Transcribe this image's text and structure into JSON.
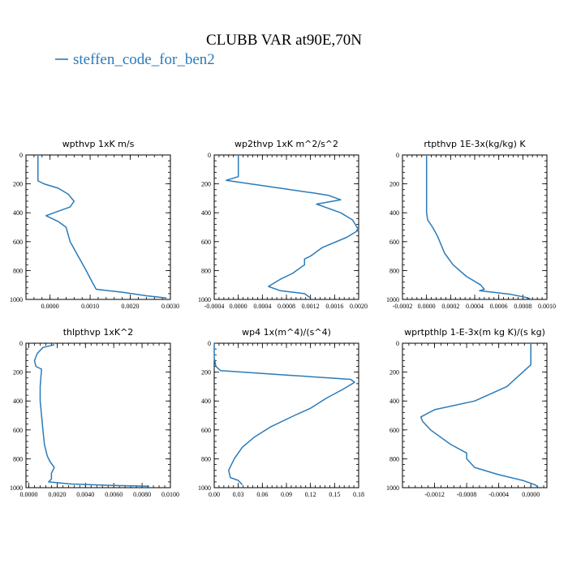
{
  "title": "CLUBB VAR at90E,70N",
  "legend": {
    "label": "steffen_code_for_ben2",
    "color": "#2b7bb9"
  },
  "line_color": "#2b7bb9",
  "chart_data": [
    {
      "type": "line",
      "title": "wpthvp   1xK m/s",
      "xlim": [
        -0.0006,
        0.003
      ],
      "ylim": [
        1000,
        0
      ],
      "xticks": [
        0.0,
        0.001,
        0.002,
        0.003
      ],
      "xtick_labels": [
        "0.0000",
        "0.0010",
        "0.0020",
        "0.0030"
      ],
      "yticks": [
        0,
        200,
        400,
        600,
        800,
        1000
      ],
      "ytick_labels": [
        "0",
        "200",
        "400",
        "600",
        "800",
        "1000"
      ],
      "series": [
        {
          "x": [
            -0.0003,
            -0.0003,
            -0.0003,
            -0.0003,
            -0.0003,
            -0.00015,
            0.0002,
            0.00045,
            0.0006,
            0.0005,
            0.0001,
            -0.0001,
            0.0002,
            0.0004,
            0.0005,
            0.0007,
            0.0009,
            0.00105,
            0.00115,
            0.0018,
            0.0024,
            0.0029
          ],
          "y": [
            0,
            50,
            100,
            150,
            180,
            200,
            230,
            270,
            320,
            360,
            400,
            420,
            460,
            500,
            600,
            700,
            800,
            880,
            930,
            950,
            975,
            990
          ]
        }
      ]
    },
    {
      "type": "line",
      "title": "wp2thvp   1xK m^2/s^2",
      "xlim": [
        -0.0004,
        0.002
      ],
      "ylim": [
        1000,
        0
      ],
      "xticks": [
        -0.0004,
        0.0,
        0.0004,
        0.0008,
        0.0012,
        0.0016,
        0.002
      ],
      "xtick_labels": [
        "-0.0004",
        "0.0000",
        "0.0004",
        "0.0008",
        "0.0012",
        "0.0016",
        "0.0020"
      ],
      "yticks": [
        0,
        200,
        400,
        600,
        800,
        1000
      ],
      "ytick_labels": [
        "0",
        "200",
        "400",
        "600",
        "800",
        "1000"
      ],
      "series": [
        {
          "x": [
            0.0,
            0.0,
            0.0,
            -0.0002,
            0.0012,
            0.0015,
            0.0017,
            0.0013,
            0.0017,
            0.0019,
            0.002,
            0.0018,
            0.0014,
            0.0012,
            0.0011,
            0.0011,
            0.0009,
            0.0007,
            0.0005,
            0.0007,
            0.0011,
            0.0012
          ],
          "y": [
            0,
            100,
            150,
            175,
            260,
            280,
            310,
            340,
            400,
            450,
            520,
            570,
            640,
            700,
            720,
            760,
            820,
            860,
            910,
            940,
            960,
            990
          ]
        }
      ]
    },
    {
      "type": "line",
      "title": "rtpthvp   1E-3x(kg/kg) K",
      "xlim": [
        -0.0002,
        0.001
      ],
      "ylim": [
        1000,
        0
      ],
      "xticks": [
        -0.0002,
        0.0,
        0.0002,
        0.0004,
        0.0006,
        0.0008,
        0.001
      ],
      "xtick_labels": [
        "-0.0002",
        "0.0000",
        "0.0002",
        "0.0004",
        "0.0006",
        "0.0008",
        "0.0010"
      ],
      "yticks": [
        0,
        200,
        400,
        600,
        800,
        1000
      ],
      "ytick_labels": [
        "0",
        "200",
        "400",
        "600",
        "800",
        "1000"
      ],
      "series": [
        {
          "x": [
            0.0,
            0.0,
            0.0,
            0.0,
            0.0,
            1e-05,
            5e-05,
            9e-05,
            0.00012,
            0.00015,
            0.00022,
            0.00033,
            0.00045,
            0.00048,
            0.00044,
            0.00055,
            0.0007,
            0.00082,
            0.00086
          ],
          "y": [
            0,
            100,
            200,
            300,
            400,
            450,
            500,
            560,
            620,
            680,
            760,
            840,
            900,
            930,
            940,
            950,
            965,
            985,
            995
          ]
        }
      ]
    },
    {
      "type": "line",
      "title": "thlpthvp   1xK^2",
      "xlim": [
        -0.0002,
        0.01
      ],
      "ylim": [
        1000,
        0
      ],
      "xticks": [
        0.0,
        0.002,
        0.004,
        0.006,
        0.008,
        0.01
      ],
      "xtick_labels": [
        "0.0000",
        "0.0020",
        "0.0040",
        "0.0060",
        "0.0080",
        "0.0100"
      ],
      "yticks": [
        0,
        200,
        400,
        600,
        800,
        1000
      ],
      "ytick_labels": [
        "0",
        "200",
        "400",
        "600",
        "800",
        "1000"
      ],
      "series": [
        {
          "x": [
            0.0018,
            0.001,
            0.0006,
            0.0004,
            0.0005,
            0.0009,
            0.0008,
            0.0008,
            0.0009,
            0.001,
            0.0011,
            0.0013,
            0.0015,
            0.0018,
            0.0016,
            0.0016,
            0.0014,
            0.003,
            0.006,
            0.0085
          ],
          "y": [
            10,
            30,
            70,
            120,
            160,
            180,
            300,
            400,
            500,
            600,
            700,
            780,
            820,
            860,
            900,
            940,
            960,
            975,
            985,
            990
          ]
        }
      ]
    },
    {
      "type": "line",
      "title": "wp4   1x(m^4)/(s^4)",
      "xlim": [
        0.0,
        0.18
      ],
      "ylim": [
        1000,
        0
      ],
      "xticks": [
        0.0,
        0.03,
        0.06,
        0.09,
        0.12,
        0.15,
        0.18
      ],
      "xtick_labels": [
        "0.00",
        "0.03",
        "0.06",
        "0.09",
        "0.12",
        "0.15",
        "0.18"
      ],
      "yticks": [
        0,
        200,
        400,
        600,
        800,
        1000
      ],
      "ytick_labels": [
        "0",
        "200",
        "400",
        "600",
        "800",
        "1000"
      ],
      "series": [
        {
          "x": [
            0.0,
            0.0,
            0.002,
            0.008,
            0.09,
            0.17,
            0.175,
            0.16,
            0.14,
            0.12,
            0.1,
            0.07,
            0.05,
            0.035,
            0.025,
            0.018,
            0.02,
            0.03,
            0.035
          ],
          "y": [
            0,
            100,
            160,
            190,
            220,
            250,
            270,
            320,
            380,
            450,
            500,
            580,
            650,
            720,
            800,
            880,
            930,
            950,
            980
          ]
        }
      ]
    },
    {
      "type": "line",
      "title": "wprtpthlp   1-E-3x(m kg K)/(s kg)",
      "xlim": [
        -0.0016,
        0.0002
      ],
      "ylim": [
        1000,
        0
      ],
      "xticks": [
        -0.0012,
        -0.0008,
        -0.0004,
        0.0
      ],
      "xtick_labels": [
        "-0.0012",
        "-0.0008",
        "-0.0004",
        "0.0000"
      ],
      "yticks": [
        0,
        200,
        400,
        600,
        800,
        1000
      ],
      "ytick_labels": [
        "0",
        "200",
        "400",
        "600",
        "800",
        "1000"
      ],
      "series": [
        {
          "x": [
            0.0,
            0.0,
            0.0,
            -0.0001,
            -0.0003,
            -0.0007,
            -0.0012,
            -0.00137,
            -0.00135,
            -0.00125,
            -0.001,
            -0.0008,
            -0.0008,
            -0.0007,
            -0.0004,
            -0.0001,
            5e-05,
            9e-05
          ],
          "y": [
            0,
            100,
            150,
            200,
            300,
            400,
            460,
            510,
            540,
            600,
            700,
            760,
            800,
            860,
            910,
            950,
            980,
            995
          ]
        }
      ]
    }
  ]
}
